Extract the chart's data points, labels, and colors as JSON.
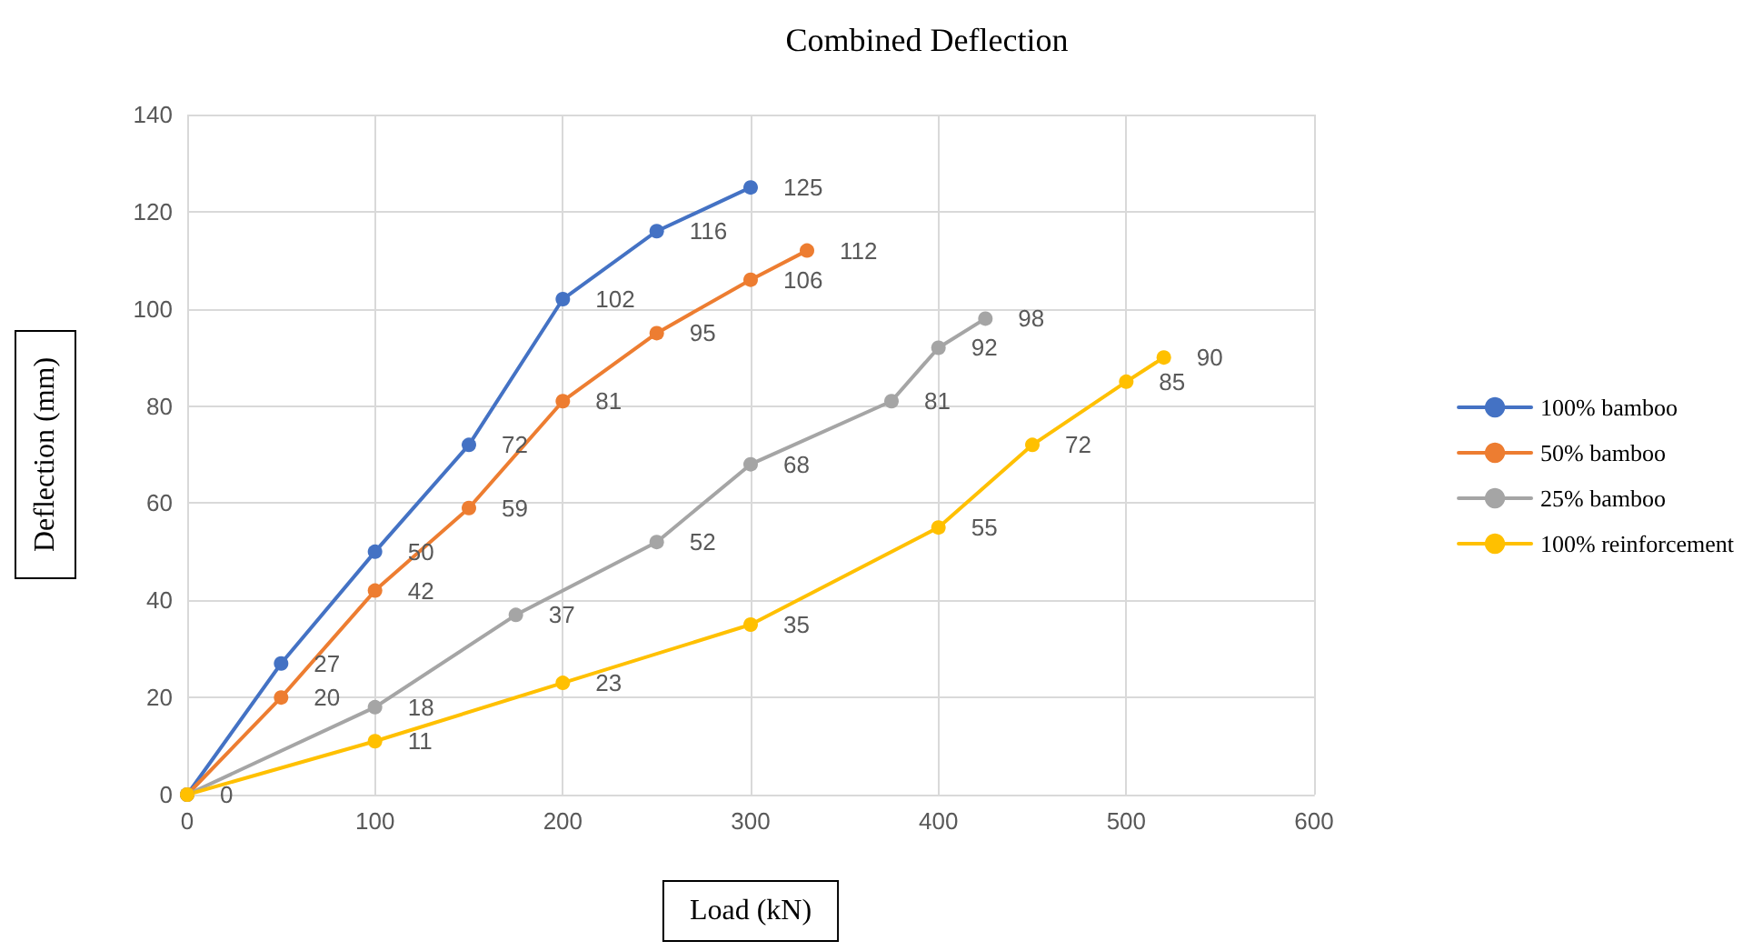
{
  "chart_data": {
    "type": "line",
    "title": "Combined Deflection",
    "xlabel": "Load (kN)",
    "ylabel": "Deflection (mm)",
    "xlim": [
      0,
      600
    ],
    "xticks": [
      0,
      100,
      200,
      300,
      400,
      500,
      600
    ],
    "ylim": [
      0,
      140
    ],
    "yticks": [
      0,
      20,
      40,
      60,
      80,
      100,
      120,
      140
    ],
    "grid": true,
    "legend": "right",
    "marker": "circle",
    "line_style": "solid",
    "series": [
      {
        "name": "100% bamboo",
        "color": "#4472c4",
        "x": [
          0,
          50,
          100,
          150,
          200,
          250,
          300
        ],
        "values": [
          0,
          27,
          50,
          72,
          102,
          116,
          125
        ],
        "value_labels": [
          null,
          "27",
          "50",
          "72",
          "102",
          "116",
          "125"
        ]
      },
      {
        "name": "50% bamboo",
        "color": "#ed7d31",
        "x": [
          0,
          50,
          100,
          150,
          200,
          250,
          300,
          330
        ],
        "values": [
          0,
          20,
          42,
          59,
          81,
          95,
          106,
          112
        ],
        "value_labels": [
          null,
          "20",
          "42",
          "59",
          "81",
          "95",
          "106",
          "112"
        ]
      },
      {
        "name": "25% bamboo",
        "color": "#a5a5a5",
        "x": [
          0,
          100,
          175,
          250,
          300,
          375,
          400,
          425
        ],
        "values": [
          0,
          18,
          37,
          52,
          68,
          81,
          92,
          98
        ],
        "value_labels": [
          null,
          "18",
          "37",
          "52",
          "68",
          "81",
          "92",
          "98"
        ]
      },
      {
        "name": "100% reinforcement",
        "color": "#ffc000",
        "x": [
          0,
          100,
          200,
          300,
          400,
          450,
          500,
          520
        ],
        "values": [
          0,
          11,
          23,
          35,
          55,
          72,
          85,
          90
        ],
        "value_labels": [
          "0",
          "11",
          "23",
          "35",
          "55",
          "72",
          "85",
          "90"
        ]
      }
    ]
  }
}
